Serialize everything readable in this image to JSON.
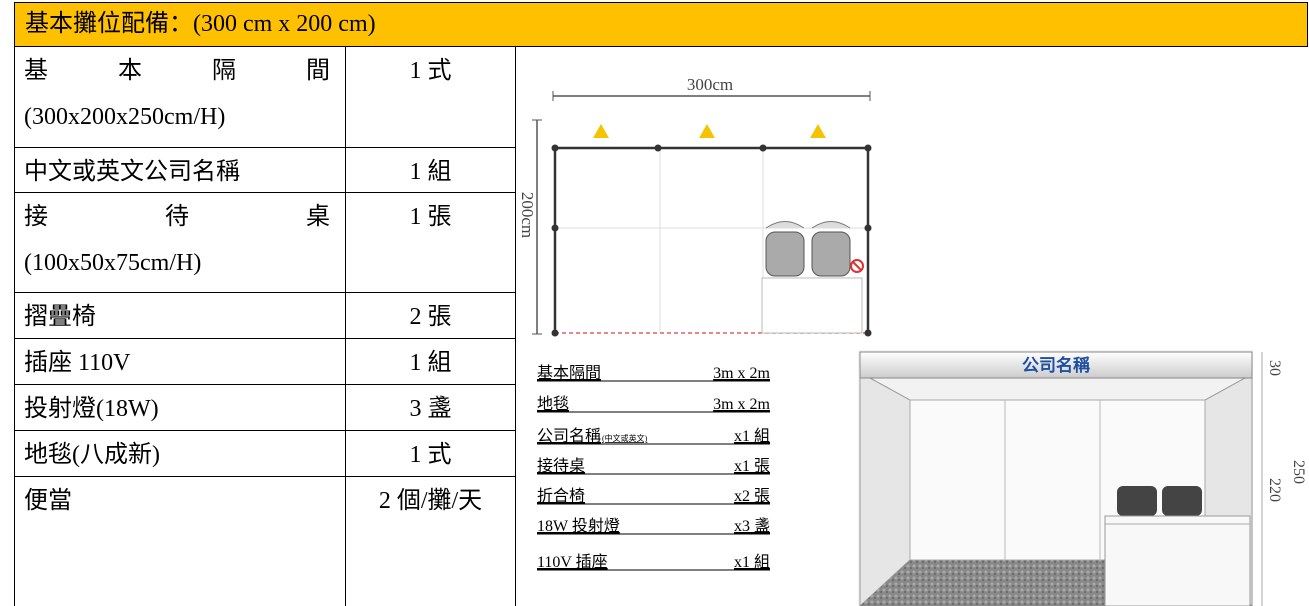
{
  "header": {
    "title": "基本攤位配備：(300 cm x 200 cm)"
  },
  "table": {
    "rows": [
      {
        "item": "基本隔間",
        "spec": "(300x200x250cm/H)",
        "qty": "1 式"
      },
      {
        "item": "中文或英文公司名稱",
        "qty": "1 組"
      },
      {
        "item": "接待桌",
        "spec": "(100x50x75cm/H)",
        "qty": "1 張"
      },
      {
        "item": "摺疊椅",
        "qty": "2 張"
      },
      {
        "item": "插座 110V",
        "qty": "1 組"
      },
      {
        "item": "投射燈(18W)",
        "qty": "3 盞"
      },
      {
        "item": "地毯(八成新)",
        "qty": "1 式"
      },
      {
        "item": "便當",
        "qty": "2 個/攤/天"
      }
    ]
  },
  "floor_plan": {
    "width_label": "300cm",
    "depth_label": "200cm"
  },
  "summary": {
    "rows": [
      {
        "item": "基本隔間",
        "qty": "3m x 2m"
      },
      {
        "item": "地毯",
        "qty": "3m x 2m"
      },
      {
        "item": "公司名稱",
        "note": "(中文或英文)",
        "qty": "x1 組"
      },
      {
        "item": "接待桌",
        "qty": "x1 張"
      },
      {
        "item": "折合椅",
        "qty": "x2 張"
      },
      {
        "item": "18W 投射燈",
        "qty": "x3 盞"
      },
      {
        "item": "110V 插座",
        "qty": "x1 組"
      }
    ]
  },
  "booth_render": {
    "sign": "公司名稱",
    "dims": [
      "30",
      "220",
      "250"
    ]
  }
}
